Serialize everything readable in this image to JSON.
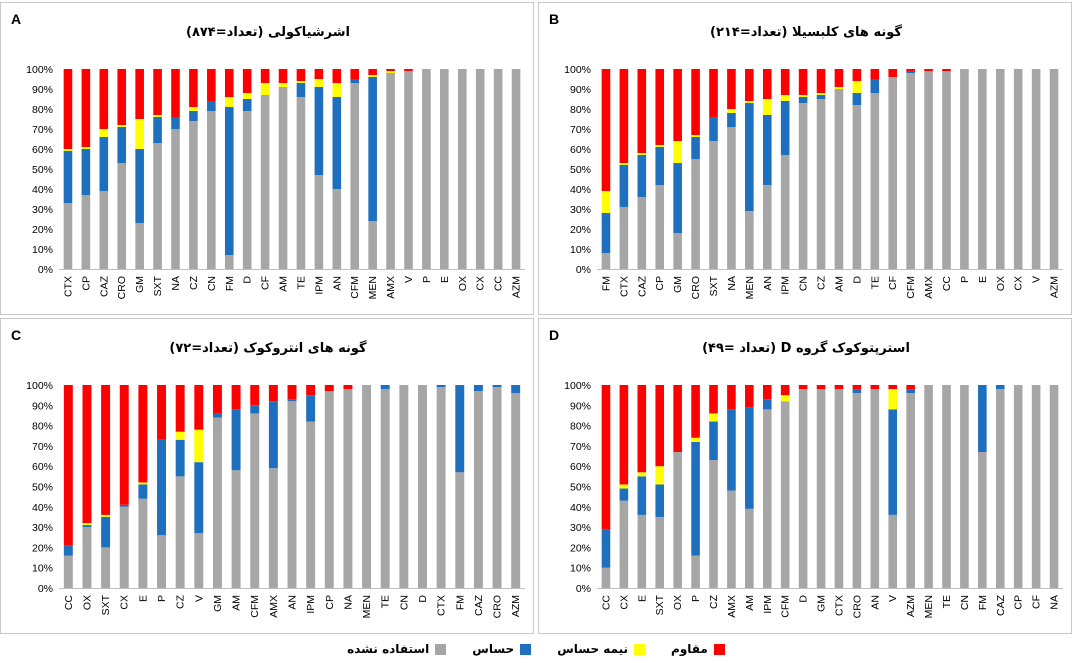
{
  "legend": [
    {
      "key": "resistant",
      "label": "مقاوم",
      "color": "#ff0000"
    },
    {
      "key": "intermediate",
      "label": "نیمه حساس",
      "color": "#ffff00"
    },
    {
      "key": "sensitive",
      "label": "حساس",
      "color": "#1f6fbf"
    },
    {
      "key": "unused",
      "label": "استفاده نشده",
      "color": "#a6a6a6"
    }
  ],
  "chart_data": [
    {
      "letter": "A",
      "title": "اشرشیاکولی (تعداد=۸۷۴)",
      "type": "bar",
      "stacked": true,
      "ylim": [
        0,
        100
      ],
      "yticks": [
        "0%",
        "10%",
        "20%",
        "30%",
        "40%",
        "50%",
        "60%",
        "70%",
        "80%",
        "90%",
        "100%"
      ],
      "categories": [
        "CTX",
        "CP",
        "CAZ",
        "CRO",
        "GM",
        "SXT",
        "NA",
        "CZ",
        "CN",
        "FM",
        "D",
        "CF",
        "AM",
        "TE",
        "IPM",
        "AN",
        "CFM",
        "MEN",
        "AMX",
        "V",
        "P",
        "E",
        "OX",
        "CX",
        "CC",
        "AZM"
      ],
      "series": [
        {
          "key": "unused",
          "values": [
            33,
            37,
            39,
            53,
            23,
            63,
            70,
            74,
            79,
            7,
            79,
            87,
            91,
            86,
            47,
            40,
            93,
            24,
            98,
            99,
            100,
            100,
            100,
            100,
            100,
            100
          ]
        },
        {
          "key": "sensitive",
          "values": [
            26,
            23,
            27,
            18,
            37,
            13,
            6,
            5,
            5,
            74,
            6,
            0,
            0,
            7,
            44,
            46,
            2,
            72,
            0,
            0,
            0,
            0,
            0,
            0,
            0,
            0
          ]
        },
        {
          "key": "intermediate",
          "values": [
            1,
            1,
            4,
            1,
            15,
            1,
            0,
            2,
            0,
            5,
            3,
            6,
            2,
            1,
            4,
            7,
            0,
            1,
            1,
            0,
            0,
            0,
            0,
            0,
            0,
            0
          ]
        },
        {
          "key": "resistant",
          "values": [
            40,
            39,
            30,
            28,
            25,
            23,
            24,
            19,
            16,
            14,
            12,
            7,
            7,
            6,
            5,
            7,
            5,
            3,
            1,
            1,
            0,
            0,
            0,
            0,
            0,
            0
          ]
        }
      ]
    },
    {
      "letter": "B",
      "title": "گونه های کلبسیلا (تعداد=۲۱۴)",
      "type": "bar",
      "stacked": true,
      "ylim": [
        0,
        100
      ],
      "yticks": [
        "0%",
        "10%",
        "20%",
        "30%",
        "40%",
        "50%",
        "60%",
        "70%",
        "80%",
        "90%",
        "100%"
      ],
      "categories": [
        "FM",
        "CTX",
        "CAZ",
        "CP",
        "GM",
        "CRO",
        "SXT",
        "NA",
        "MEN",
        "AN",
        "IPM",
        "CN",
        "CZ",
        "AM",
        "D",
        "TE",
        "CF",
        "CFM",
        "AMX",
        "CC",
        "P",
        "E",
        "OX",
        "CX",
        "V",
        "AZM"
      ],
      "series": [
        {
          "key": "unused",
          "values": [
            8,
            31,
            36,
            42,
            18,
            55,
            64,
            71,
            29,
            42,
            57,
            83,
            85,
            90,
            82,
            88,
            96,
            98,
            99,
            99,
            100,
            100,
            100,
            100,
            100,
            100
          ]
        },
        {
          "key": "sensitive",
          "values": [
            20,
            21,
            21,
            19,
            35,
            11,
            12,
            7,
            54,
            35,
            27,
            3,
            2,
            0,
            6,
            7,
            0,
            1,
            0,
            0,
            0,
            0,
            0,
            0,
            0,
            0
          ]
        },
        {
          "key": "intermediate",
          "values": [
            11,
            1,
            1,
            1,
            11,
            1,
            0,
            2,
            1,
            8,
            3,
            1,
            1,
            1,
            6,
            0,
            0,
            0,
            0,
            0,
            0,
            0,
            0,
            0,
            0,
            0
          ]
        },
        {
          "key": "resistant",
          "values": [
            61,
            47,
            42,
            38,
            36,
            33,
            24,
            20,
            16,
            15,
            13,
            13,
            12,
            9,
            6,
            5,
            4,
            1,
            1,
            1,
            0,
            0,
            0,
            0,
            0,
            0
          ]
        }
      ]
    },
    {
      "letter": "C",
      "title": "گونه های انتروکوک (تعداد=۷۲)",
      "type": "bar",
      "stacked": true,
      "ylim": [
        0,
        100
      ],
      "yticks": [
        "0%",
        "10%",
        "20%",
        "30%",
        "40%",
        "50%",
        "60%",
        "70%",
        "80%",
        "90%",
        "100%"
      ],
      "categories": [
        "CC",
        "OX",
        "SXT",
        "CX",
        "E",
        "P",
        "CZ",
        "V",
        "GM",
        "AM",
        "CFM",
        "AMX",
        "AN",
        "IPM",
        "CP",
        "NA",
        "MEN",
        "TE",
        "CN",
        "D",
        "CTX",
        "FM",
        "CAZ",
        "CRO",
        "AZM"
      ],
      "series": [
        {
          "key": "unused",
          "values": [
            16,
            30,
            20,
            40,
            44,
            26,
            55,
            27,
            84,
            58,
            86,
            59,
            92,
            82,
            97,
            98,
            100,
            98,
            100,
            100,
            99,
            57,
            97,
            99,
            96
          ]
        },
        {
          "key": "sensitive",
          "values": [
            5,
            1,
            15,
            1,
            7,
            47,
            18,
            35,
            2,
            30,
            4,
            33,
            1,
            13,
            0,
            0,
            0,
            2,
            0,
            0,
            1,
            43,
            3,
            1,
            4
          ]
        },
        {
          "key": "intermediate",
          "values": [
            0,
            1,
            1,
            0,
            1,
            0,
            4,
            16,
            0,
            0,
            0,
            0,
            0,
            0,
            0,
            0,
            0,
            0,
            0,
            0,
            0,
            0,
            0,
            0,
            0
          ]
        },
        {
          "key": "resistant",
          "values": [
            79,
            68,
            64,
            59,
            48,
            27,
            23,
            22,
            14,
            12,
            10,
            8,
            7,
            5,
            3,
            2,
            0,
            0,
            0,
            0,
            0,
            0,
            0,
            0,
            0
          ]
        }
      ]
    },
    {
      "letter": "D",
      "title": "استرپتوکوک گروه D (تعداد =۴۹)",
      "type": "bar",
      "stacked": true,
      "ylim": [
        0,
        100
      ],
      "yticks": [
        "0%",
        "10%",
        "20%",
        "30%",
        "40%",
        "50%",
        "60%",
        "70%",
        "80%",
        "90%",
        "100%"
      ],
      "categories": [
        "CC",
        "CX",
        "E",
        "SXT",
        "OX",
        "P",
        "CZ",
        "AMX",
        "AM",
        "IPM",
        "CFM",
        "D",
        "GM",
        "CTX",
        "CRO",
        "AN",
        "V",
        "AZM",
        "MEN",
        "TE",
        "CN",
        "FM",
        "CAZ",
        "CP",
        "CF",
        "NA"
      ],
      "series": [
        {
          "key": "unused",
          "values": [
            10,
            43,
            36,
            35,
            67,
            16,
            63,
            48,
            39,
            88,
            92,
            98,
            98,
            98,
            96,
            98,
            36,
            96,
            100,
            100,
            100,
            67,
            98,
            100,
            100,
            100
          ]
        },
        {
          "key": "sensitive",
          "values": [
            19,
            6,
            19,
            16,
            0,
            56,
            19,
            40,
            50,
            5,
            0,
            0,
            0,
            0,
            2,
            0,
            52,
            2,
            0,
            0,
            0,
            33,
            2,
            0,
            0,
            0
          ]
        },
        {
          "key": "intermediate",
          "values": [
            0,
            2,
            2,
            9,
            0,
            2,
            4,
            0,
            0,
            0,
            3,
            0,
            0,
            0,
            0,
            0,
            10,
            0,
            0,
            0,
            0,
            0,
            0,
            0,
            0,
            0
          ]
        },
        {
          "key": "resistant",
          "values": [
            71,
            49,
            43,
            40,
            33,
            26,
            14,
            12,
            11,
            7,
            5,
            2,
            2,
            2,
            2,
            2,
            2,
            2,
            0,
            0,
            0,
            0,
            0,
            0,
            0,
            0
          ]
        }
      ]
    }
  ]
}
